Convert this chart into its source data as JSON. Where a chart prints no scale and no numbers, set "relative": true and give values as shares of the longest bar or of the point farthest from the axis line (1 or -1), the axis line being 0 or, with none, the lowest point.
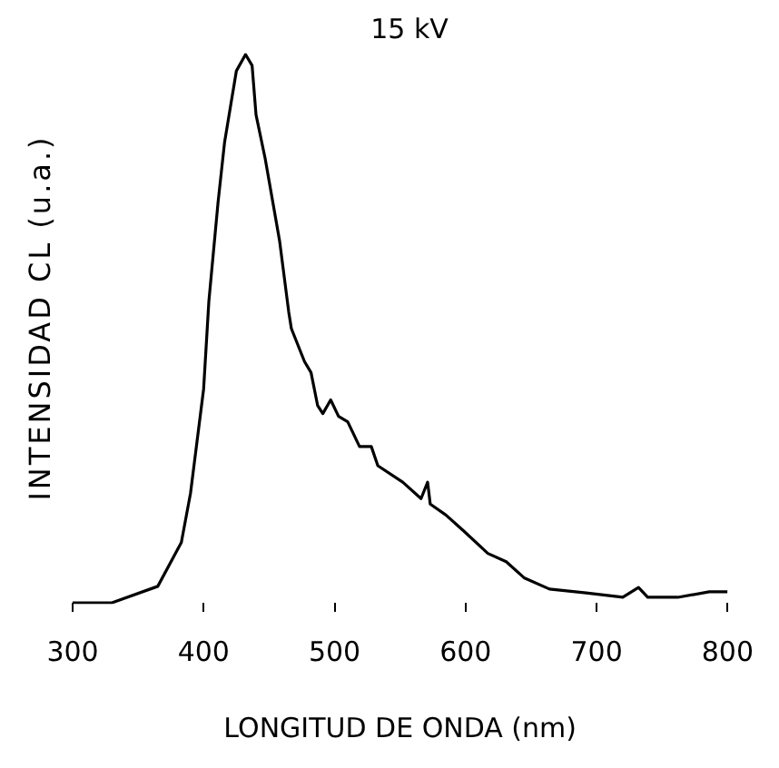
{
  "chart_data": {
    "type": "line",
    "title": "15 kV",
    "xlabel": "LONGITUD DE ONDA (nm)",
    "ylabel": "INTENSIDAD CL (u.a.)",
    "relative": true,
    "xlim": [
      300,
      800
    ],
    "xticks": [
      300,
      400,
      500,
      600,
      700,
      800
    ],
    "grid": false,
    "legend": false,
    "marker": "none",
    "line_style": "solid",
    "series": [
      {
        "color": "#000000",
        "x": [
          300,
          330,
          365,
          383,
          390,
          400,
          404,
          411,
          416,
          425,
          432,
          437,
          440,
          447,
          458,
          465,
          467,
          477,
          482,
          487,
          491,
          497,
          503,
          510,
          519,
          528,
          533,
          552,
          566,
          571,
          573,
          585,
          599,
          617,
          631,
          645,
          664,
          692,
          720,
          732,
          739,
          762,
          786,
          800
        ],
        "values": [
          0,
          0,
          0.03,
          0.11,
          0.2,
          0.39,
          0.55,
          0.73,
          0.84,
          0.97,
          1,
          0.98,
          0.89,
          0.81,
          0.66,
          0.53,
          0.5,
          0.44,
          0.42,
          0.36,
          0.345,
          0.37,
          0.34,
          0.33,
          0.285,
          0.285,
          0.25,
          0.22,
          0.19,
          0.22,
          0.18,
          0.16,
          0.13,
          0.09,
          0.075,
          0.045,
          0.025,
          0.018,
          0.01,
          0.028,
          0.01,
          0.01,
          0.02,
          0.02
        ]
      }
    ]
  }
}
